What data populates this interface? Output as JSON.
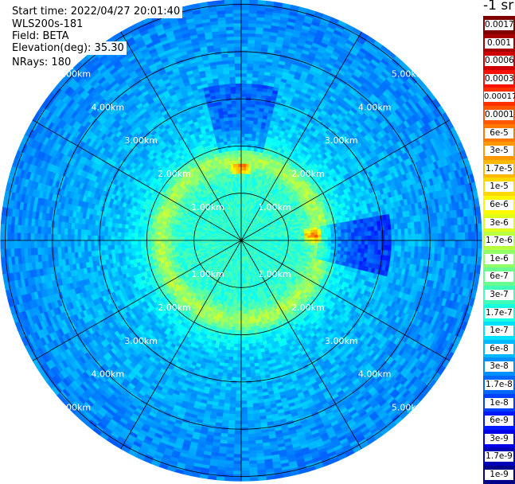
{
  "info": {
    "start_time": "Start time: 2022/04/27 20:01:40",
    "instrument": "WLS200s-181",
    "field": "Field: BETA",
    "elevation": "Elevation(deg): 35.30",
    "nrays": "NRays: 180"
  },
  "chart_data": {
    "type": "heatmap",
    "projection": "polar",
    "ring_labels": [
      "1.00km",
      "2.00km",
      "3.00km",
      "4.00km",
      "5.00km"
    ],
    "ring_ranges_km": [
      1,
      2,
      3,
      4,
      5
    ],
    "max_range_km": 5.1,
    "spoke_count": 12,
    "spoke_interval_deg": 30,
    "colorbar_title": "-1 sr",
    "colorbar_labels": [
      "0.0017",
      "0.001",
      "0.0006",
      "0.0003",
      "0.00017",
      "0.0001",
      "6e-5",
      "3e-5",
      "1.7e-5",
      "1e-5",
      "6e-6",
      "3e-6",
      "1.7e-6",
      "1e-6",
      "6e-7",
      "3e-7",
      "1.7e-7",
      "1e-7",
      "6e-8",
      "3e-8",
      "1.7e-8",
      "1e-8",
      "6e-9",
      "3e-9",
      "1.7e-9",
      "1e-9"
    ],
    "colorbar_colors": [
      "#800000",
      "#a80000",
      "#d00000",
      "#f81000",
      "#ff3000",
      "#ff5800",
      "#ff7800",
      "#ff9800",
      "#ffb800",
      "#ffd800",
      "#fff800",
      "#e0ff18",
      "#b8ff40",
      "#90ff68",
      "#68ff90",
      "#40ffb8",
      "#18ffe0",
      "#00e0ff",
      "#00b8ff",
      "#0090ff",
      "#0068ff",
      "#0040ff",
      "#0018ff",
      "#0000e8",
      "#0000b8",
      "#000088"
    ]
  }
}
